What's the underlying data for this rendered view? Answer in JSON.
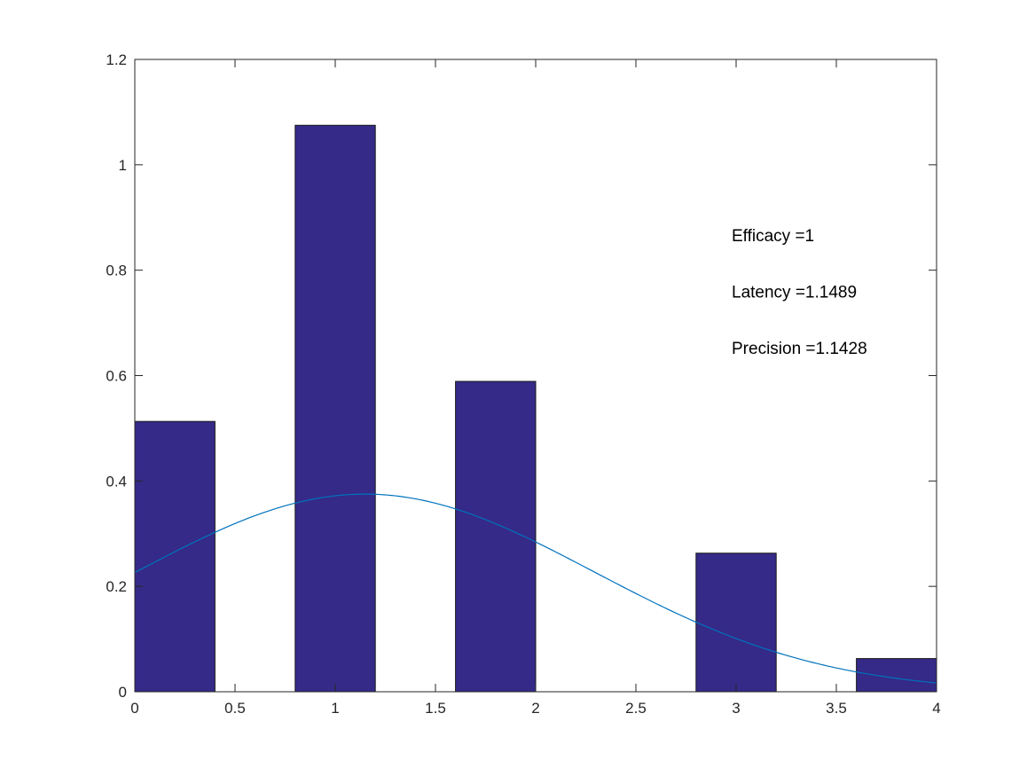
{
  "chart_data": {
    "type": "bar",
    "title": "",
    "xlabel": "",
    "ylabel": "",
    "xlim": [
      0,
      4
    ],
    "ylim": [
      0,
      1.2
    ],
    "xticks": [
      0,
      0.5,
      1,
      1.5,
      2,
      2.5,
      3,
      3.5,
      4
    ],
    "xtick_labels": [
      "0",
      "0.5",
      "1",
      "1.5",
      "2",
      "2.5",
      "3",
      "3.5",
      "4"
    ],
    "yticks": [
      0,
      0.2,
      0.4,
      0.6,
      0.8,
      1,
      1.2
    ],
    "ytick_labels": [
      "0",
      "0.2",
      "0.4",
      "0.6",
      "0.8",
      "1",
      "1.2"
    ],
    "grid": false,
    "bar_width": 0.4,
    "bars": [
      {
        "x": 0.2,
        "value": 0.513
      },
      {
        "x": 1.0,
        "value": 1.075
      },
      {
        "x": 1.8,
        "value": 0.589
      },
      {
        "x": 3.0,
        "value": 0.263
      },
      {
        "x": 3.8,
        "value": 0.063
      }
    ],
    "bar_color": "#352a87",
    "bar_edge_color": "#1a1a1a",
    "curve": {
      "type": "line",
      "description": "normal fit",
      "mu": 1.1489,
      "sigma": 1.1428,
      "scale": 1.0744,
      "color": "#0072bd"
    },
    "annotations": [
      {
        "text": "Efficacy =1",
        "x": 3.0,
        "y": 0.855
      },
      {
        "text": "Latency =1.1489",
        "x": 3.0,
        "y": 0.748
      },
      {
        "text": "Precision =1.1428",
        "x": 3.0,
        "y": 0.641
      }
    ]
  }
}
